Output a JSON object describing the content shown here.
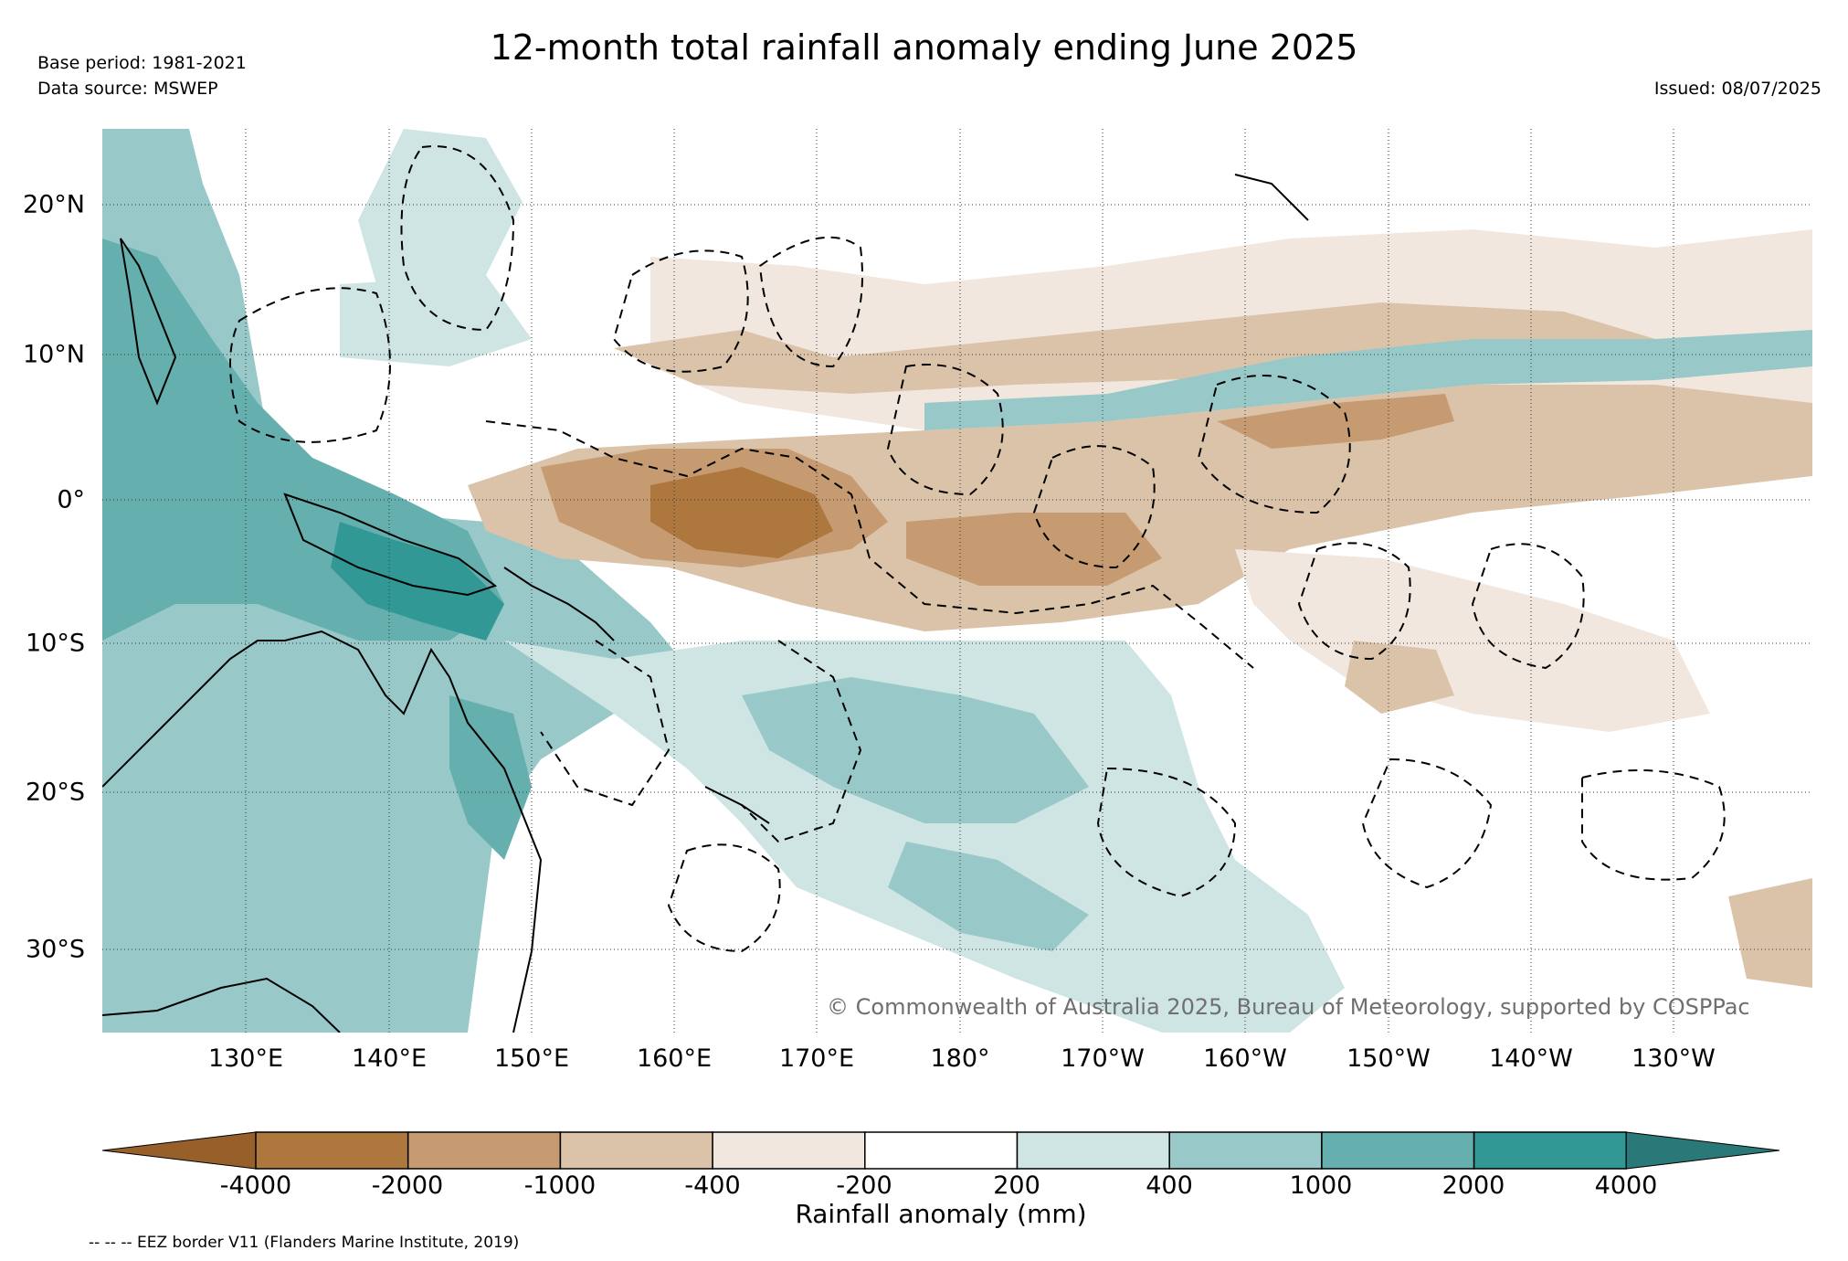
{
  "header": {
    "title": "12-month total rainfall anomaly ending June 2025",
    "base_period": "Base period: 1981-2021",
    "data_source": "Data source: MSWEP",
    "issued": "Issued: 08/07/2025"
  },
  "map": {
    "lat_ticks": [
      "20°N",
      "10°N",
      "0°",
      "10°S",
      "20°S",
      "30°S"
    ],
    "lon_ticks": [
      "130°E",
      "140°E",
      "150°E",
      "160°E",
      "170°E",
      "180°",
      "170°W",
      "160°W",
      "150°W",
      "140°W",
      "130°W"
    ],
    "copyright": "© Commonwealth of Australia 2025, Bureau of Meteorology, supported by COSPPac"
  },
  "colorbar": {
    "title": "Rainfall anomaly (mm)",
    "labels": [
      "-4000",
      "-2000",
      "-1000",
      "-400",
      "-200",
      "200",
      "400",
      "1000",
      "2000",
      "4000"
    ],
    "colors": [
      "#97602a",
      "#ae773e",
      "#c69b72",
      "#dbc3aa",
      "#f1e7de",
      "#ffffff",
      "#cee5e4",
      "#98c9c8",
      "#65b0ae",
      "#329896",
      "#2a7978"
    ]
  },
  "legend_note": "-- -- -- EEZ border V11 (Flanders Marine Institute, 2019)"
}
